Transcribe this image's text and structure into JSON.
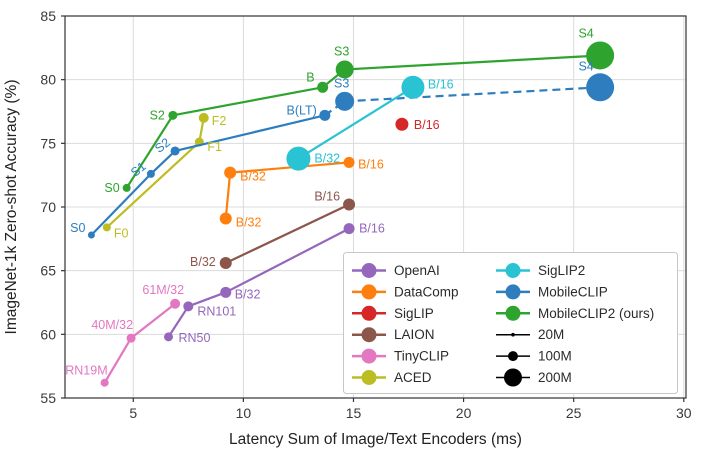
{
  "chart_data": {
    "type": "scatter",
    "title": "",
    "xlabel": "Latency Sum of Image/Text Encoders (ms)",
    "ylabel": "ImageNet-1k Zero-shot Accuracy (%)",
    "xlim": [
      1.9,
      30.1
    ],
    "ylim": [
      55,
      85
    ],
    "xticks": [
      5,
      10,
      15,
      20,
      25,
      30
    ],
    "yticks": [
      55,
      60,
      65,
      70,
      75,
      80,
      85
    ],
    "grid": true,
    "legend_position": "lower right",
    "series": [
      {
        "name": "OpenAI",
        "color": "#9467bd",
        "points": [
          {
            "x": 6.6,
            "y": 59.8,
            "r": 4.5,
            "label": "RN50",
            "anchor": "start",
            "dx": 10,
            "dy": 5
          },
          {
            "x": 7.5,
            "y": 62.2,
            "r": 5,
            "label": "RN101",
            "anchor": "start",
            "dx": 9,
            "dy": 9
          },
          {
            "x": 9.2,
            "y": 63.3,
            "r": 5.5,
            "label": "B/32",
            "anchor": "start",
            "dx": 9,
            "dy": 6
          },
          {
            "x": 14.8,
            "y": 68.3,
            "r": 5.5,
            "label": "B/16",
            "anchor": "start",
            "dx": 10,
            "dy": 4
          }
        ]
      },
      {
        "name": "DataComp",
        "color": "#ff7f0e",
        "points": [
          {
            "x": 9.2,
            "y": 69.1,
            "r": 6,
            "label": "B/32",
            "anchor": "start",
            "dx": 10,
            "dy": 8
          },
          {
            "x": 9.4,
            "y": 72.7,
            "r": 6,
            "label": "B/32",
            "anchor": "start",
            "dx": 10,
            "dy": 8
          },
          {
            "x": 14.8,
            "y": 73.5,
            "r": 5.5,
            "label": "B/16",
            "anchor": "start",
            "dx": 9,
            "dy": 6
          }
        ]
      },
      {
        "name": "SigLIP",
        "color": "#d62728",
        "points": [
          {
            "x": 17.2,
            "y": 76.5,
            "r": 6.5,
            "label": "B/16",
            "anchor": "start",
            "dx": 12,
            "dy": 5
          }
        ]
      },
      {
        "name": "LAION",
        "color": "#8c564b",
        "points": [
          {
            "x": 9.2,
            "y": 65.6,
            "r": 6,
            "label": "B/32",
            "anchor": "end",
            "dx": -10,
            "dy": 3
          },
          {
            "x": 14.8,
            "y": 70.2,
            "r": 6,
            "label": "B/16",
            "anchor": "end",
            "dx": -9,
            "dy": -4
          }
        ]
      },
      {
        "name": "TinyCLIP",
        "color": "#e377c2",
        "points": [
          {
            "x": 3.7,
            "y": 56.2,
            "r": 4,
            "label": "RN19M",
            "anchor": "end",
            "dx": 3,
            "dy": -8
          },
          {
            "x": 4.9,
            "y": 59.7,
            "r": 4.5,
            "label": "40M/32",
            "anchor": "end",
            "dx": 2,
            "dy": -9
          },
          {
            "x": 6.9,
            "y": 62.4,
            "r": 5,
            "label": "61M/32",
            "anchor": "end",
            "dx": 9,
            "dy": -10
          }
        ]
      },
      {
        "name": "ACED",
        "color": "#bcbd22",
        "points": [
          {
            "x": 3.8,
            "y": 68.4,
            "r": 4,
            "label": "F0",
            "anchor": "start",
            "dx": 7,
            "dy": 10
          },
          {
            "x": 8.0,
            "y": 75.1,
            "r": 4.5,
            "label": "F1",
            "anchor": "start",
            "dx": 8,
            "dy": 9
          },
          {
            "x": 8.2,
            "y": 77.0,
            "r": 5,
            "label": "F2",
            "anchor": "start",
            "dx": 8,
            "dy": 7
          }
        ]
      },
      {
        "name": "MobileCLIP",
        "color": "#2e7ebf",
        "points": [
          {
            "x": 3.1,
            "y": 67.8,
            "r": 3.5,
            "label": "S0",
            "anchor": "end",
            "dx": -6,
            "dy": -3
          },
          {
            "x": 5.8,
            "y": 72.6,
            "r": 4,
            "label": "S1",
            "anchor": "end",
            "dx": -4,
            "dy": -6,
            "rot": -38
          },
          {
            "x": 6.9,
            "y": 74.4,
            "r": 4.5,
            "label": "S2",
            "anchor": "end",
            "dx": -4,
            "dy": -7,
            "rot": -38
          },
          {
            "x": 13.7,
            "y": 77.2,
            "r": 5.5,
            "label": "B(LT)",
            "anchor": "end",
            "dx": -8,
            "dy": -1
          },
          {
            "x": 14.6,
            "y": 78.3,
            "r": 9.5,
            "label": "S3",
            "anchor": "middle",
            "dx": -3,
            "dy": -14,
            "dash": true
          },
          {
            "x": 26.2,
            "y": 79.4,
            "r": 14,
            "label": "S4",
            "anchor": "middle",
            "dx": -14,
            "dy": -17,
            "dash": true
          }
        ]
      },
      {
        "name": "SigLIP2",
        "color": "#29c3d3",
        "points": [
          {
            "x": 12.5,
            "y": 73.8,
            "r": 12,
            "label": "B/32",
            "anchor": "start",
            "dx": 16,
            "dy": 4
          },
          {
            "x": 17.7,
            "y": 79.4,
            "r": 11.5,
            "label": "B/16",
            "anchor": "start",
            "dx": 15,
            "dy": 1
          }
        ]
      },
      {
        "name": "MobileCLIP2 (ours)",
        "color": "#2ea42e",
        "points": [
          {
            "x": 4.7,
            "y": 71.5,
            "r": 4,
            "label": "S0",
            "anchor": "end",
            "dx": -7,
            "dy": 4
          },
          {
            "x": 6.8,
            "y": 77.2,
            "r": 4.5,
            "label": "S2",
            "anchor": "end",
            "dx": -8,
            "dy": 4
          },
          {
            "x": 13.6,
            "y": 79.4,
            "r": 5.5,
            "label": "B",
            "anchor": "end",
            "dx": -8,
            "dy": -6
          },
          {
            "x": 14.6,
            "y": 80.8,
            "r": 9,
            "label": "S3",
            "anchor": "middle",
            "dx": -3,
            "dy": -14
          },
          {
            "x": 26.2,
            "y": 81.9,
            "r": 14,
            "label": "S4",
            "anchor": "middle",
            "dx": -14,
            "dy": -18
          }
        ]
      }
    ],
    "legend": {
      "columns": [
        [
          {
            "label": "OpenAI",
            "color": "#9467bd"
          },
          {
            "label": "DataComp",
            "color": "#ff7f0e"
          },
          {
            "label": "SigLIP",
            "color": "#d62728"
          },
          {
            "label": "LAION",
            "color": "#8c564b"
          },
          {
            "label": "TinyCLIP",
            "color": "#e377c2"
          },
          {
            "label": "ACED",
            "color": "#bcbd22"
          }
        ],
        [
          {
            "label": "SigLIP2",
            "color": "#29c3d3"
          },
          {
            "label": "MobileCLIP",
            "color": "#2e7ebf"
          },
          {
            "label": "MobileCLIP2 (ours)",
            "color": "#2ea42e"
          },
          {
            "label": "20M",
            "color": "#000000",
            "size": 1.8
          },
          {
            "label": "100M",
            "color": "#000000",
            "size": 5
          },
          {
            "label": "200M",
            "color": "#000000",
            "size": 9
          }
        ]
      ]
    }
  }
}
